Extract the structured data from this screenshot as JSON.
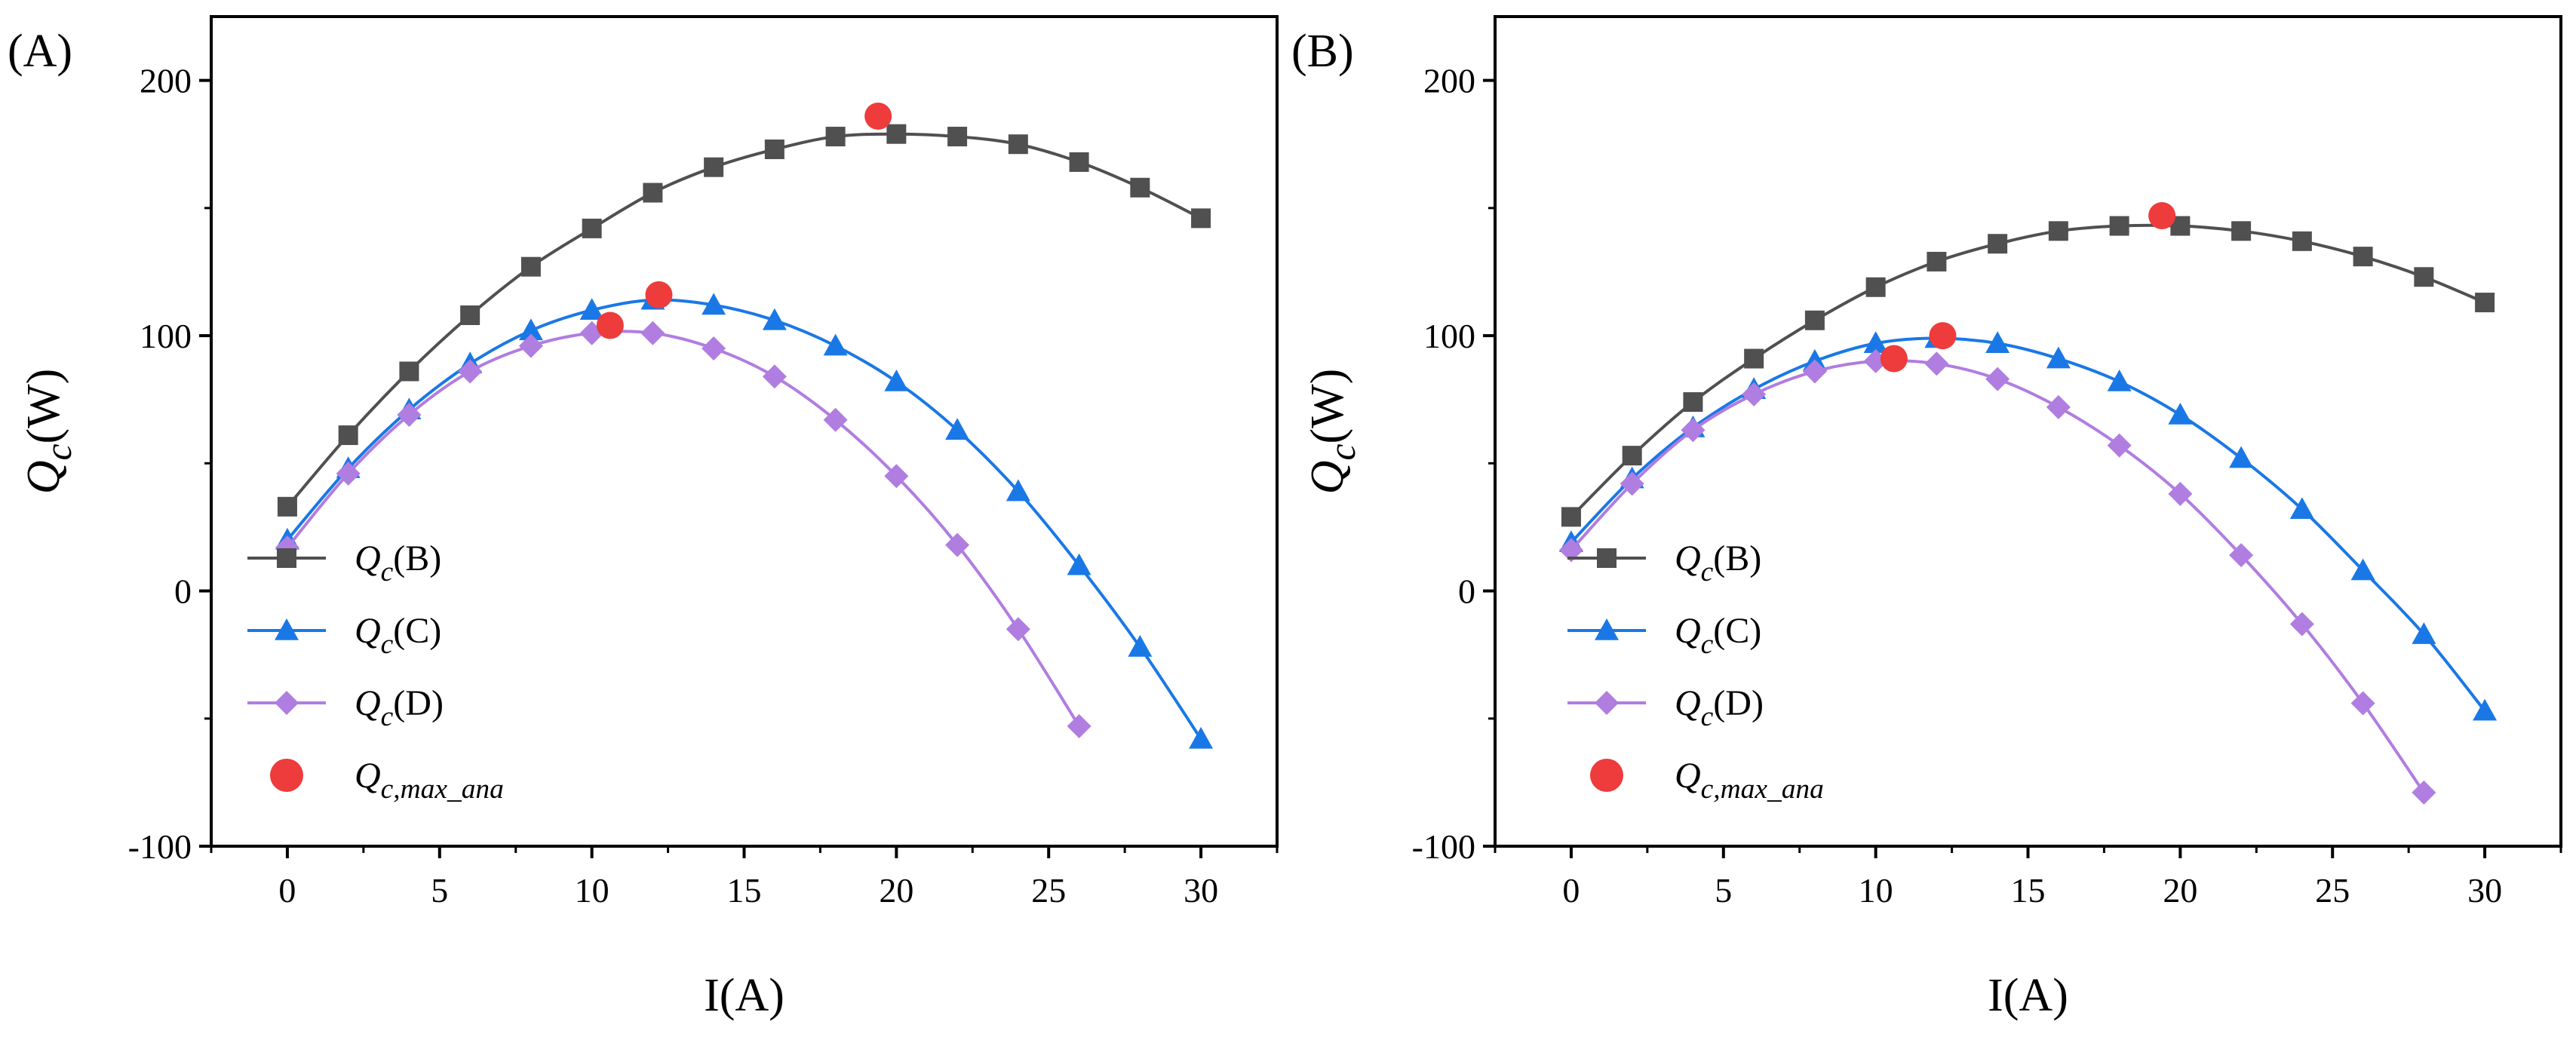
{
  "chart_data": [
    {
      "type": "line",
      "panel_label": "(A)",
      "xlabel": "I(A)",
      "ylabel": {
        "main": "Q",
        "sub": "c",
        "unit": "(W)"
      },
      "xlim": [
        -2.5,
        32.5
      ],
      "ylim": [
        -100,
        225
      ],
      "xticks": [
        0,
        5,
        10,
        15,
        20,
        25,
        30
      ],
      "yticks": [
        -100,
        0,
        100,
        200
      ],
      "legend_position": "lower-left",
      "series": [
        {
          "name": "Qc(B)",
          "label_main": "Q",
          "label_sub": "c",
          "label_suffix": "(B)",
          "color": "#505050",
          "marker": "square",
          "x": [
            0,
            2,
            4,
            6,
            8,
            10,
            12,
            14,
            16,
            18,
            20,
            22,
            24,
            26,
            28,
            30
          ],
          "y": [
            33,
            61,
            86,
            108,
            127,
            142,
            156,
            166,
            173,
            178,
            179,
            178,
            175,
            168,
            158,
            146
          ]
        },
        {
          "name": "Qc(C)",
          "label_main": "Q",
          "label_sub": "c",
          "label_suffix": "(C)",
          "color": "#1a78e6",
          "marker": "triangle",
          "x": [
            0,
            2,
            4,
            6,
            8,
            10,
            12,
            14,
            16,
            18,
            20,
            22,
            24,
            26,
            28,
            30
          ],
          "y": [
            20,
            48,
            71,
            89,
            102,
            110,
            114,
            112,
            106,
            96,
            82,
            63,
            39,
            10,
            -22,
            -58
          ]
        },
        {
          "name": "Qc(D)",
          "label_main": "Q",
          "label_sub": "c",
          "label_suffix": "(D)",
          "color": "#b07de0",
          "marker": "diamond",
          "x": [
            0,
            2,
            4,
            6,
            8,
            10,
            12,
            14,
            16,
            18,
            20,
            22,
            24,
            26
          ],
          "y": [
            17,
            46,
            69,
            86,
            96,
            101,
            101,
            95,
            84,
            67,
            45,
            18,
            -15,
            -53
          ]
        },
        {
          "name": "Qc,max_ana",
          "label_main": "Q",
          "label_sub": "c,max_ana",
          "label_suffix": "",
          "color": "#ee3b3b",
          "marker": "circle",
          "x": [
            10.6,
            12.2,
            19.4
          ],
          "y": [
            104,
            116,
            186
          ]
        }
      ]
    },
    {
      "type": "line",
      "panel_label": "(B)",
      "xlabel": "I(A)",
      "ylabel": {
        "main": "Q",
        "sub": "c",
        "unit": "(W)"
      },
      "xlim": [
        -2.5,
        32.5
      ],
      "ylim": [
        -100,
        225
      ],
      "xticks": [
        0,
        5,
        10,
        15,
        20,
        25,
        30
      ],
      "yticks": [
        -100,
        0,
        100,
        200
      ],
      "legend_position": "lower-left",
      "series": [
        {
          "name": "Qc(B)",
          "label_main": "Q",
          "label_sub": "c",
          "label_suffix": "(B)",
          "color": "#505050",
          "marker": "square",
          "x": [
            0,
            2,
            4,
            6,
            8,
            10,
            12,
            14,
            16,
            18,
            20,
            22,
            24,
            26,
            28,
            30
          ],
          "y": [
            29,
            53,
            74,
            91,
            106,
            119,
            129,
            136,
            141,
            143,
            143,
            141,
            137,
            131,
            123,
            113
          ]
        },
        {
          "name": "Qc(C)",
          "label_main": "Q",
          "label_sub": "c",
          "label_suffix": "(C)",
          "color": "#1a78e6",
          "marker": "triangle",
          "x": [
            0,
            2,
            4,
            6,
            8,
            10,
            12,
            14,
            16,
            18,
            20,
            22,
            24,
            26,
            28,
            30
          ],
          "y": [
            19,
            44,
            64,
            79,
            90,
            97,
            99,
            97,
            91,
            82,
            69,
            52,
            32,
            8,
            -17,
            -47
          ]
        },
        {
          "name": "Qc(D)",
          "label_main": "Q",
          "label_sub": "c",
          "label_suffix": "(D)",
          "color": "#b07de0",
          "marker": "diamond",
          "x": [
            0,
            2,
            4,
            6,
            8,
            10,
            12,
            14,
            16,
            18,
            20,
            22,
            24,
            26,
            28
          ],
          "y": [
            16,
            42,
            63,
            77,
            86,
            90,
            89,
            83,
            72,
            57,
            38,
            14,
            -13,
            -44,
            -79
          ]
        },
        {
          "name": "Qc,max_ana",
          "label_main": "Q",
          "label_sub": "c,max_ana",
          "label_suffix": "",
          "color": "#ee3b3b",
          "marker": "circle",
          "x": [
            10.6,
            12.2,
            19.4
          ],
          "y": [
            91,
            100,
            147
          ]
        }
      ]
    }
  ]
}
